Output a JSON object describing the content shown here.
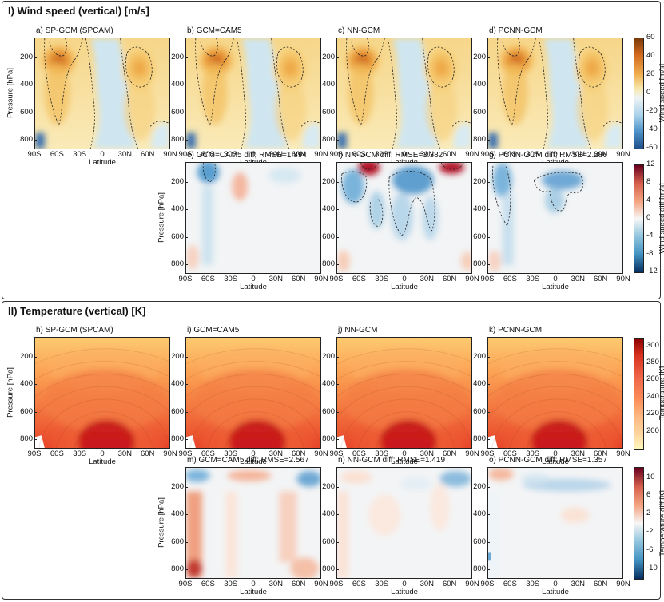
{
  "sections": [
    {
      "title": "I) Wind speed (vertical) [m/s]"
    },
    {
      "title": "II) Temperature (vertical) [K]"
    }
  ],
  "axes": {
    "ylabel": "Pressure [hPa]",
    "xlabel": "Latitude",
    "yticks": [
      "200",
      "400",
      "600",
      "800"
    ],
    "xticks": [
      "90S",
      "60S",
      "30S",
      "0",
      "30N",
      "60N",
      "90N"
    ]
  },
  "panels": {
    "a": {
      "title": "a) SP-GCM (SPCAM)"
    },
    "b": {
      "title": "b) GCM=CAM5"
    },
    "c": {
      "title": "c) NN-GCM"
    },
    "d": {
      "title": "d) PCNN-GCM"
    },
    "e": {
      "title": "e) GCM=CAM5 diff; RMSE=1.894"
    },
    "f": {
      "title": "f) NN-GCM diff; RMSE=3.382"
    },
    "g": {
      "title": "g) PCNN-GCM diff; RMSE=2.286"
    },
    "h": {
      "title": "h) SP-GCM (SPCAM)"
    },
    "i": {
      "title": "i) GCM=CAM5"
    },
    "j": {
      "title": "j) NN-GCM"
    },
    "k": {
      "title": "k) PCNN-GCM"
    },
    "m": {
      "title": "m) GCM=CAM5 diff; RMSE=2.567"
    },
    "n": {
      "title": "n) NN-GCM diff; RMSE=1.419"
    },
    "o": {
      "title": "o) PCNN-GCM diff; RMSE=1.357"
    }
  },
  "colorbars": {
    "wind": {
      "label": "Wind speed [m/s]",
      "ticks": [
        "60",
        "40",
        "20",
        "0",
        "-20",
        "-40",
        "-60"
      ],
      "colors": [
        "#7a3a0a",
        "#d2691e",
        "#f0b050",
        "#f7e9b0",
        "#f5f5f0",
        "#a9d2ea",
        "#4a90c8",
        "#1f4f8a"
      ]
    },
    "winddiff": {
      "label": "Wind speed diff [m/s]",
      "ticks": [
        "12",
        "8",
        "4",
        "0",
        "-4",
        "-8",
        "-12"
      ],
      "colors": [
        "#67001f",
        "#d6604d",
        "#f4a582",
        "#f7f7f7",
        "#92c5de",
        "#4393c3",
        "#053061"
      ]
    },
    "temp": {
      "label": "Temperature [K]",
      "ticks": [
        "300",
        "280",
        "260",
        "240",
        "220",
        "200"
      ],
      "colors": [
        "#8b0000",
        "#d7301f",
        "#ef6548",
        "#fc8d59",
        "#fdbb84",
        "#fdd49e",
        "#fff7bc"
      ]
    },
    "tempdiff": {
      "label": "Temperature diff [K]",
      "ticks": [
        "10",
        "6",
        "2",
        "-2",
        "-6",
        "-10"
      ],
      "colors": [
        "#67001f",
        "#d6604d",
        "#f4a582",
        "#f7f7f7",
        "#92c5de",
        "#4393c3",
        "#053061"
      ]
    }
  },
  "chart_data": [
    {
      "type": "heatmap",
      "panel": "a",
      "title": "a) SP-GCM (SPCAM)",
      "xlabel": "Latitude",
      "ylabel": "Pressure [hPa]",
      "xlim": [
        "90S",
        "90N"
      ],
      "ylim": [
        1000,
        0
      ],
      "colorbar": "Wind speed [m/s]",
      "crange": [
        -60,
        60
      ]
    },
    {
      "type": "heatmap",
      "panel": "b",
      "title": "b) GCM=CAM5",
      "colorbar": "Wind speed [m/s]",
      "crange": [
        -60,
        60
      ]
    },
    {
      "type": "heatmap",
      "panel": "c",
      "title": "c) NN-GCM",
      "colorbar": "Wind speed [m/s]",
      "crange": [
        -60,
        60
      ]
    },
    {
      "type": "heatmap",
      "panel": "d",
      "title": "d) PCNN-GCM",
      "colorbar": "Wind speed [m/s]",
      "crange": [
        -60,
        60
      ]
    },
    {
      "type": "heatmap",
      "panel": "e",
      "title": "e) GCM=CAM5 diff; RMSE=1.894",
      "rmse": 1.894,
      "colorbar": "Wind speed diff [m/s]",
      "crange": [
        -12,
        12
      ]
    },
    {
      "type": "heatmap",
      "panel": "f",
      "title": "f) NN-GCM diff; RMSE=3.382",
      "rmse": 3.382,
      "colorbar": "Wind speed diff [m/s]",
      "crange": [
        -12,
        12
      ]
    },
    {
      "type": "heatmap",
      "panel": "g",
      "title": "g) PCNN-GCM diff; RMSE=2.286",
      "rmse": 2.286,
      "colorbar": "Wind speed diff [m/s]",
      "crange": [
        -12,
        12
      ]
    },
    {
      "type": "heatmap",
      "panel": "h",
      "title": "h) SP-GCM (SPCAM)",
      "colorbar": "Temperature [K]",
      "crange": [
        190,
        310
      ]
    },
    {
      "type": "heatmap",
      "panel": "i",
      "title": "i) GCM=CAM5",
      "colorbar": "Temperature [K]",
      "crange": [
        190,
        310
      ]
    },
    {
      "type": "heatmap",
      "panel": "j",
      "title": "j) NN-GCM",
      "colorbar": "Temperature [K]",
      "crange": [
        190,
        310
      ]
    },
    {
      "type": "heatmap",
      "panel": "k",
      "title": "k) PCNN-GCM",
      "colorbar": "Temperature [K]",
      "crange": [
        190,
        310
      ]
    },
    {
      "type": "heatmap",
      "panel": "m",
      "title": "m) GCM=CAM5 diff; RMSE=2.567",
      "rmse": 2.567,
      "colorbar": "Temperature diff [K]",
      "crange": [
        -12,
        12
      ]
    },
    {
      "type": "heatmap",
      "panel": "n",
      "title": "n) NN-GCM diff; RMSE=1.419",
      "rmse": 1.419,
      "colorbar": "Temperature diff [K]",
      "crange": [
        -12,
        12
      ]
    },
    {
      "type": "heatmap",
      "panel": "o",
      "title": "o) PCNN-GCM diff; RMSE=1.357",
      "rmse": 1.357,
      "colorbar": "Temperature diff [K]",
      "crange": [
        -12,
        12
      ]
    }
  ]
}
